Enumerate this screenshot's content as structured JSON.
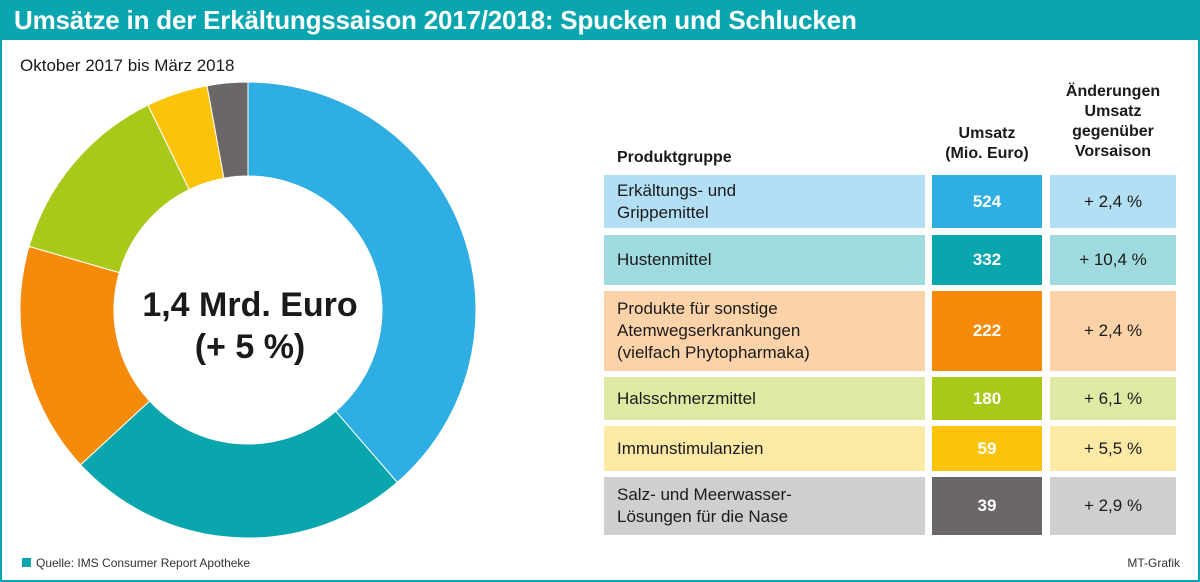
{
  "header": {
    "title": "Umsätze in der Erkältungssaison 2017/2018: Spucken und Schlucken"
  },
  "subtitle": "Oktober 2017 bis März 2018",
  "center": {
    "line1": "1,4 Mrd. Euro",
    "line2": "(+ 5 %)"
  },
  "table": {
    "col_product": "Produktgruppe",
    "col_sales_1": "Umsatz",
    "col_sales_2": "(Mio. Euro)",
    "col_change_1": "Änderungen",
    "col_change_2": "Umsatz",
    "col_change_3": "gegenüber",
    "col_change_4": "Vorsaison",
    "rows": [
      {
        "name": [
          "Erkältungs- und",
          "Grippemittel"
        ],
        "value": "524",
        "change": "+ 2,4 %",
        "light": "#b3dff4",
        "color": "#2eaee3",
        "value_text": "#ffffff"
      },
      {
        "name": [
          "Hustenmittel"
        ],
        "value": "332",
        "change": "+ 10,4 %",
        "light": "#9fdbde",
        "color": "#0aa6ad",
        "value_text": "#ffffff"
      },
      {
        "name": [
          "Produkte für sonstige",
          "Atemwegserkrankungen",
          "(vielfach Phytopharmaka)"
        ],
        "value": "222",
        "change": "+ 2,4 %",
        "light": "#fcd3a8",
        "color": "#f58a0b",
        "value_text": "#ffffff"
      },
      {
        "name": [
          "Halsschmerzmittel"
        ],
        "value": "180",
        "change": "+ 6,1 %",
        "light": "#deeaa4",
        "color": "#a8c81a",
        "value_text": "#ffffff"
      },
      {
        "name": [
          "Immunstimulanzien"
        ],
        "value": "59",
        "change": "+ 5,5 %",
        "light": "#fde9a6",
        "color": "#fbc40a",
        "value_text": "#ffffff"
      },
      {
        "name": [
          "Salz- und Meerwasser-",
          "Lösungen für die Nase"
        ],
        "value": "39",
        "change": "+ 2,9 %",
        "light": "#cfcfcf",
        "color": "#6b6767",
        "value_text": "#ffffff"
      }
    ]
  },
  "footer": {
    "source": "Quelle: IMS Consumer Report Apotheke",
    "credit": "MT-Grafik"
  },
  "chart_data": {
    "type": "pie",
    "categories": [
      "Erkältungs- und Grippemittel",
      "Hustenmittel",
      "Produkte für sonstige Atemwegserkrankungen (vielfach Phytopharmaka)",
      "Halsschmerzmittel",
      "Immunstimulanzien",
      "Salz- und Meerwasser-Lösungen für die Nase"
    ],
    "values": [
      524,
      332,
      222,
      180,
      59,
      39
    ],
    "colors": [
      "#2eaee3",
      "#0aa6ad",
      "#f58a0b",
      "#a8c81a",
      "#fbc40a",
      "#6b6767"
    ],
    "title": "Umsätze in der Erkältungssaison 2017/2018: Spucken und Schlucken",
    "subtitle": "Oktober 2017 bis März 2018"
  }
}
